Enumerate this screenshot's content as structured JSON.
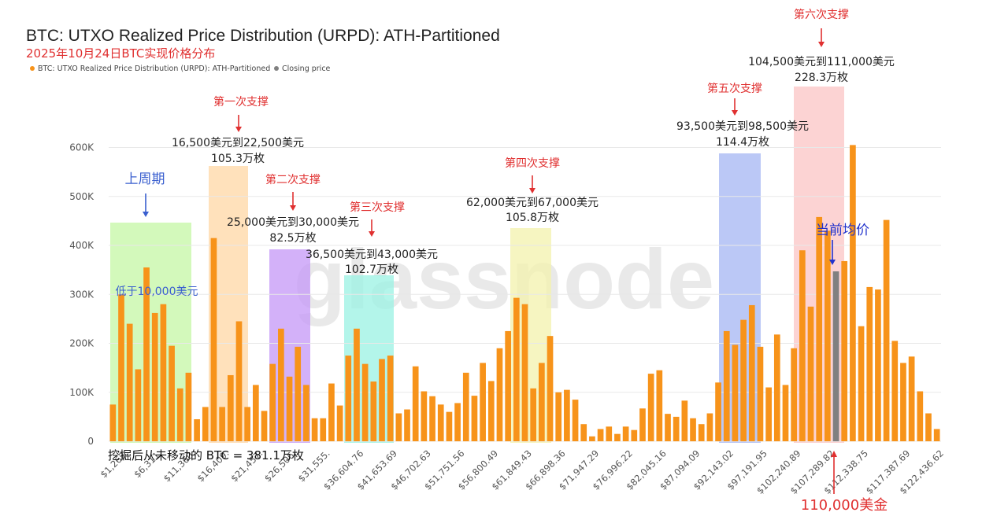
{
  "header": {
    "title": "BTC: UTXO Realized Price Distribution (URPD): ATH-Partitioned",
    "subtitle": "2025年10月24日BTC实现价格分布"
  },
  "legend": {
    "items": [
      {
        "label": "BTC: UTXO Realized Price Distribution (URPD): ATH-Partitioned",
        "color": "#f7931a"
      },
      {
        "label": "Closing price",
        "color": "#808080"
      }
    ]
  },
  "watermark": "glassnode",
  "footer_note": "挖掘后从未移动的 BTC = 381.1万枚",
  "zones": [
    {
      "name": "below-10k",
      "color": "#c6f7a8",
      "title": "上周期",
      "range": "低于10,000美元",
      "amount": ""
    },
    {
      "name": "support-1",
      "color": "#ffd9a8",
      "title": "第一次支撑",
      "range": "16,500美元到22,500美元",
      "amount": "105.3万枚"
    },
    {
      "name": "support-2",
      "color": "#c79bf7",
      "title": "第二次支撑",
      "range": "25,000美元到30,000美元",
      "amount": "82.5万枚"
    },
    {
      "name": "support-3",
      "color": "#9ef2e4",
      "title": "第三次支撑",
      "range": "36,500美元到43,000美元",
      "amount": "102.7万枚"
    },
    {
      "name": "support-4",
      "color": "#f3f2b0",
      "title": "第四次支撑",
      "range": "62,000美元到67,000美元",
      "amount": "105.8万枚"
    },
    {
      "name": "support-5",
      "color": "#a8b9f3",
      "title": "第五次支撑",
      "range": "93,500美元到98,500美元",
      "amount": "114.4万枚"
    },
    {
      "name": "support-6",
      "color": "#fbc7c7",
      "title": "第六次支撑",
      "range": "104,500美元到111,000美元",
      "amount": "228.3万枚"
    }
  ],
  "current_avg_label": "当前均价",
  "price_marker_label": "110,000美金",
  "chart_data": {
    "type": "bar",
    "title": "BTC: UTXO Realized Price Distribution (URPD): ATH-Partitioned",
    "subtitle": "2025年10月24日BTC实现价格分布",
    "xlabel": "",
    "ylabel": "",
    "ylim": [
      0,
      650000
    ],
    "yticks": [
      0,
      100000,
      200000,
      300000,
      400000,
      500000,
      600000
    ],
    "ytick_labels": [
      "0",
      "100K",
      "200K",
      "300K",
      "400K",
      "500K",
      "600K"
    ],
    "x_tick_labels": [
      "$1,262.",
      "$6,311.",
      "$11,360.",
      "$16,409.",
      "$21,457.",
      "$26,506.",
      "$31,555.",
      "$36,604.76",
      "$41,653.69",
      "$46,702.63",
      "$51,751.56",
      "$56,800.49",
      "$61,849.43",
      "$66,898.36",
      "$71,947.29",
      "$76,996.22",
      "$82,045.16",
      "$87,094.09",
      "$92,143.02",
      "$97,191.95",
      "$102,240.89",
      "$107,289.82",
      "$112,338.75",
      "$117,387.69",
      "$122,436.62"
    ],
    "legend_position": "top-left",
    "grid": true,
    "series": [
      {
        "name": "BTC: UTXO Realized Price Distribution (URPD): ATH-Partitioned",
        "color": "#f7931a",
        "values": [
          75000,
          300000,
          240000,
          147000,
          355000,
          262000,
          280000,
          195000,
          108000,
          140000,
          45000,
          70000,
          415000,
          70000,
          135000,
          245000,
          70000,
          115000,
          62000,
          158000,
          230000,
          132000,
          193000,
          115000,
          47000,
          47000,
          118000,
          73000,
          175000,
          230000,
          158000,
          122000,
          168000,
          175000,
          57000,
          65000,
          153000,
          102000,
          92000,
          75000,
          60000,
          78000,
          140000,
          93000,
          160000,
          123000,
          190000,
          225000,
          293000,
          280000,
          108000,
          160000,
          215000,
          100000,
          105000,
          85000,
          35000,
          10000,
          25000,
          30000,
          15000,
          30000,
          23000,
          67000,
          138000,
          145000,
          56000,
          50000,
          83000,
          47000,
          35000,
          57000,
          120000,
          225000,
          197000,
          248000,
          278000,
          193000,
          110000,
          218000,
          115000,
          190000,
          390000,
          275000,
          458000,
          430000,
          0,
          368000,
          605000,
          235000,
          315000,
          310000,
          452000,
          205000,
          160000,
          173000,
          102000,
          57000,
          25000
        ]
      },
      {
        "name": "Closing price",
        "color": "#808080",
        "values": [
          0,
          0,
          0,
          0,
          0,
          0,
          0,
          0,
          0,
          0,
          0,
          0,
          0,
          0,
          0,
          0,
          0,
          0,
          0,
          0,
          0,
          0,
          0,
          0,
          0,
          0,
          0,
          0,
          0,
          0,
          0,
          0,
          0,
          0,
          0,
          0,
          0,
          0,
          0,
          0,
          0,
          0,
          0,
          0,
          0,
          0,
          0,
          0,
          0,
          0,
          0,
          0,
          0,
          0,
          0,
          0,
          0,
          0,
          0,
          0,
          0,
          0,
          0,
          0,
          0,
          0,
          0,
          0,
          0,
          0,
          0,
          0,
          0,
          0,
          0,
          0,
          0,
          0,
          0,
          0,
          0,
          0,
          0,
          0,
          0,
          0,
          347000,
          0,
          0,
          0,
          0,
          0,
          0,
          0,
          0,
          0,
          0,
          0,
          0
        ]
      }
    ]
  }
}
